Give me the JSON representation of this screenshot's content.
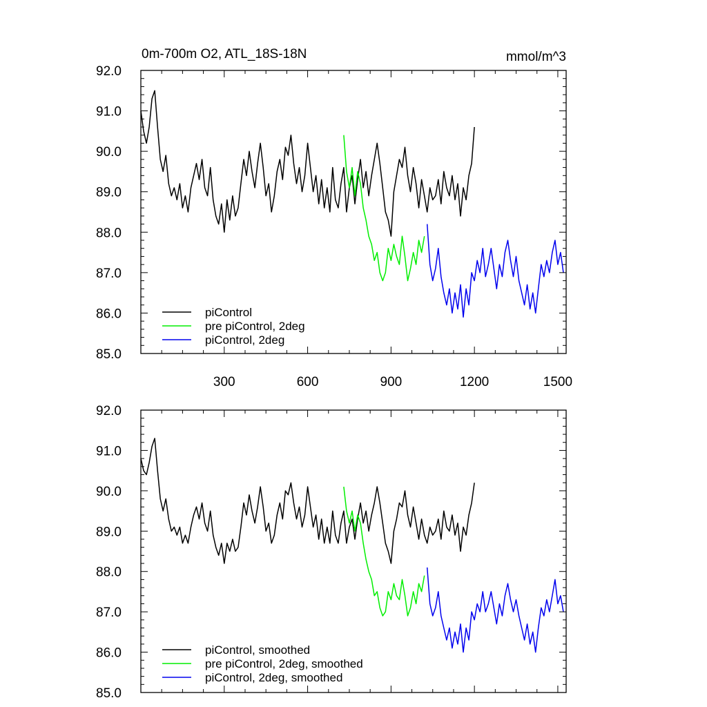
{
  "chart_data": [
    {
      "type": "line",
      "title": "0m-700m O2, ATL_18S-18N",
      "units_label": "mmol/m^3",
      "xlim": [
        0,
        1530
      ],
      "ylim": [
        85.0,
        92.0
      ],
      "x_ticks": [
        300,
        600,
        900,
        1200,
        1500
      ],
      "x_tick_labels": [
        "300",
        "600",
        "900",
        "1200",
        "1500"
      ],
      "y_ticks": [
        85,
        86,
        87,
        88,
        89,
        90,
        91,
        92
      ],
      "y_tick_labels": [
        "85.0",
        "86.0",
        "87.0",
        "88.0",
        "89.0",
        "90.0",
        "91.0",
        "92.0"
      ],
      "legend": [
        "piControl",
        "pre piControl, 2deg",
        "piControl, 2deg"
      ],
      "series": [
        {
          "name": "piControl",
          "color": "#000000",
          "x": [
            0,
            10,
            20,
            30,
            40,
            50,
            60,
            70,
            80,
            90,
            100,
            110,
            120,
            130,
            140,
            150,
            160,
            170,
            180,
            190,
            200,
            210,
            220,
            230,
            240,
            250,
            260,
            270,
            280,
            290,
            300,
            310,
            320,
            330,
            340,
            350,
            360,
            370,
            380,
            390,
            400,
            410,
            420,
            430,
            440,
            450,
            460,
            470,
            480,
            490,
            500,
            510,
            520,
            530,
            540,
            550,
            560,
            570,
            580,
            590,
            600,
            610,
            620,
            630,
            640,
            650,
            660,
            670,
            680,
            690,
            700,
            710,
            720,
            730,
            740,
            750,
            760,
            770,
            780,
            790,
            800,
            810,
            820,
            830,
            840,
            850,
            860,
            870,
            880,
            890,
            900,
            910,
            920,
            930,
            940,
            950,
            960,
            970,
            980,
            990,
            1000,
            1010,
            1020,
            1030,
            1040,
            1050,
            1060,
            1070,
            1080,
            1090,
            1100,
            1110,
            1120,
            1130,
            1140,
            1150,
            1160,
            1170,
            1180,
            1190,
            1200
          ],
          "values": [
            91.0,
            90.5,
            90.2,
            90.6,
            91.3,
            91.5,
            90.6,
            89.8,
            89.5,
            89.9,
            89.2,
            88.9,
            89.1,
            88.8,
            89.2,
            88.6,
            88.9,
            88.5,
            89.1,
            89.4,
            89.7,
            89.3,
            89.8,
            89.1,
            88.9,
            89.6,
            88.8,
            88.4,
            88.2,
            88.7,
            88.0,
            88.8,
            88.3,
            88.9,
            88.4,
            88.6,
            89.2,
            89.8,
            89.4,
            90.0,
            89.5,
            89.1,
            89.7,
            90.2,
            89.6,
            88.9,
            89.2,
            88.5,
            88.9,
            89.5,
            89.8,
            89.3,
            90.1,
            89.9,
            90.4,
            89.7,
            89.2,
            89.6,
            89.0,
            89.4,
            90.2,
            89.6,
            89.0,
            89.4,
            88.7,
            89.3,
            88.6,
            89.1,
            88.5,
            89.6,
            88.8,
            88.6,
            89.2,
            89.6,
            88.5,
            89.1,
            89.4,
            88.7,
            89.3,
            89.8,
            89.1,
            89.5,
            88.9,
            89.4,
            89.8,
            90.2,
            89.7,
            89.1,
            88.5,
            88.3,
            87.9,
            89.0,
            89.4,
            89.8,
            89.6,
            90.1,
            89.4,
            89.0,
            89.6,
            89.2,
            88.6,
            89.3,
            88.9,
            88.5,
            89.1,
            88.8,
            88.9,
            89.3,
            88.7,
            89.5,
            89.1,
            88.9,
            89.4,
            88.8,
            89.2,
            88.4,
            89.1,
            88.8,
            89.4,
            89.7,
            90.6
          ]
        },
        {
          "name": "pre piControl, 2deg",
          "color": "#00ee00",
          "x": [
            730,
            740,
            750,
            760,
            770,
            780,
            790,
            800,
            810,
            820,
            830,
            840,
            850,
            860,
            870,
            880,
            890,
            900,
            910,
            920,
            930,
            940,
            950,
            960,
            970,
            980,
            990,
            1000,
            1010,
            1020
          ],
          "values": [
            90.4,
            89.5,
            89.1,
            89.6,
            88.9,
            89.5,
            89.2,
            88.6,
            88.3,
            87.9,
            87.7,
            87.3,
            87.5,
            87.0,
            86.8,
            87.0,
            87.6,
            87.3,
            87.7,
            87.4,
            87.2,
            87.9,
            87.4,
            86.8,
            87.1,
            87.5,
            87.2,
            87.8,
            87.5,
            87.9
          ]
        },
        {
          "name": "piControl, 2deg",
          "color": "#0000ee",
          "x": [
            1030,
            1040,
            1050,
            1060,
            1070,
            1080,
            1090,
            1100,
            1110,
            1120,
            1130,
            1140,
            1150,
            1160,
            1170,
            1180,
            1190,
            1200,
            1210,
            1220,
            1230,
            1240,
            1250,
            1260,
            1270,
            1280,
            1290,
            1300,
            1310,
            1320,
            1330,
            1340,
            1350,
            1360,
            1370,
            1380,
            1390,
            1400,
            1410,
            1420,
            1430,
            1440,
            1450,
            1460,
            1470,
            1480,
            1490,
            1500,
            1510,
            1520
          ],
          "values": [
            88.2,
            87.2,
            86.8,
            87.1,
            87.6,
            86.9,
            86.5,
            86.2,
            86.6,
            86.0,
            86.5,
            86.1,
            86.7,
            85.9,
            86.6,
            86.2,
            87.0,
            86.8,
            87.3,
            87.0,
            87.6,
            86.9,
            87.2,
            87.6,
            87.1,
            86.6,
            87.2,
            86.9,
            87.5,
            87.8,
            87.3,
            86.9,
            87.4,
            86.8,
            86.5,
            86.2,
            86.7,
            86.1,
            86.5,
            86.0,
            86.6,
            87.2,
            86.9,
            87.3,
            87.0,
            87.5,
            87.8,
            87.2,
            87.5,
            87.0
          ]
        }
      ]
    },
    {
      "type": "line",
      "xlim": [
        0,
        1530
      ],
      "ylim": [
        85.0,
        92.0
      ],
      "x_ticks": [
        300,
        600,
        900,
        1200,
        1500
      ],
      "y_ticks": [
        85,
        86,
        87,
        88,
        89,
        90,
        91,
        92
      ],
      "y_tick_labels": [
        "85.0",
        "86.0",
        "87.0",
        "88.0",
        "89.0",
        "90.0",
        "91.0",
        "92.0"
      ],
      "legend": [
        "piControl, smoothed",
        "pre piControl, 2deg, smoothed",
        "piControl, 2deg, smoothed"
      ],
      "series": [
        {
          "name": "piControl, smoothed",
          "color": "#000000",
          "x": [
            0,
            10,
            20,
            30,
            40,
            50,
            60,
            70,
            80,
            90,
            100,
            110,
            120,
            130,
            140,
            150,
            160,
            170,
            180,
            190,
            200,
            210,
            220,
            230,
            240,
            250,
            260,
            270,
            280,
            290,
            300,
            310,
            320,
            330,
            340,
            350,
            360,
            370,
            380,
            390,
            400,
            410,
            420,
            430,
            440,
            450,
            460,
            470,
            480,
            490,
            500,
            510,
            520,
            530,
            540,
            550,
            560,
            570,
            580,
            590,
            600,
            610,
            620,
            630,
            640,
            650,
            660,
            670,
            680,
            690,
            700,
            710,
            720,
            730,
            740,
            750,
            760,
            770,
            780,
            790,
            800,
            810,
            820,
            830,
            840,
            850,
            860,
            870,
            880,
            890,
            900,
            910,
            920,
            930,
            940,
            950,
            960,
            970,
            980,
            990,
            1000,
            1010,
            1020,
            1030,
            1040,
            1050,
            1060,
            1070,
            1080,
            1090,
            1100,
            1110,
            1120,
            1130,
            1140,
            1150,
            1160,
            1170,
            1180,
            1190,
            1200
          ],
          "values": [
            90.8,
            90.5,
            90.4,
            90.7,
            91.1,
            91.3,
            90.5,
            89.8,
            89.5,
            89.8,
            89.3,
            89.0,
            89.1,
            88.9,
            89.1,
            88.7,
            88.9,
            88.7,
            89.1,
            89.4,
            89.6,
            89.3,
            89.7,
            89.2,
            89.0,
            89.5,
            88.9,
            88.6,
            88.4,
            88.7,
            88.2,
            88.7,
            88.5,
            88.8,
            88.5,
            88.6,
            89.1,
            89.7,
            89.4,
            89.9,
            89.5,
            89.2,
            89.6,
            90.1,
            89.6,
            89.0,
            89.2,
            88.7,
            88.9,
            89.4,
            89.7,
            89.3,
            90.0,
            89.9,
            90.2,
            89.7,
            89.3,
            89.6,
            89.1,
            89.4,
            90.1,
            89.6,
            89.1,
            89.4,
            88.8,
            89.3,
            88.7,
            89.1,
            88.7,
            89.5,
            88.9,
            88.7,
            89.2,
            89.5,
            88.7,
            89.1,
            89.3,
            88.8,
            89.3,
            89.7,
            89.2,
            89.5,
            89.0,
            89.4,
            89.7,
            90.1,
            89.7,
            89.2,
            88.7,
            88.5,
            88.2,
            89.0,
            89.3,
            89.7,
            89.6,
            90.0,
            89.4,
            89.1,
            89.6,
            89.2,
            88.8,
            89.3,
            88.9,
            88.7,
            89.1,
            88.9,
            89.0,
            89.3,
            88.8,
            89.5,
            89.1,
            89.0,
            89.4,
            88.9,
            89.2,
            88.5,
            89.1,
            88.9,
            89.4,
            89.7,
            90.2
          ]
        },
        {
          "name": "pre piControl, 2deg, smoothed",
          "color": "#00ee00",
          "x": [
            730,
            740,
            750,
            760,
            770,
            780,
            790,
            800,
            810,
            820,
            830,
            840,
            850,
            860,
            870,
            880,
            890,
            900,
            910,
            920,
            930,
            940,
            950,
            960,
            970,
            980,
            990,
            1000,
            1010,
            1020
          ],
          "values": [
            90.1,
            89.5,
            89.2,
            89.5,
            89.0,
            89.4,
            89.2,
            88.7,
            88.3,
            88.0,
            87.8,
            87.4,
            87.5,
            87.1,
            86.9,
            87.0,
            87.5,
            87.3,
            87.7,
            87.4,
            87.3,
            87.8,
            87.4,
            86.9,
            87.1,
            87.5,
            87.2,
            87.7,
            87.5,
            87.9
          ]
        },
        {
          "name": "piControl, 2deg, smoothed",
          "color": "#0000ee",
          "x": [
            1030,
            1040,
            1050,
            1060,
            1070,
            1080,
            1090,
            1100,
            1110,
            1120,
            1130,
            1140,
            1150,
            1160,
            1170,
            1180,
            1190,
            1200,
            1210,
            1220,
            1230,
            1240,
            1250,
            1260,
            1270,
            1280,
            1290,
            1300,
            1310,
            1320,
            1330,
            1340,
            1350,
            1360,
            1370,
            1380,
            1390,
            1400,
            1410,
            1420,
            1430,
            1440,
            1450,
            1460,
            1470,
            1480,
            1490,
            1500,
            1510,
            1520
          ],
          "values": [
            88.1,
            87.2,
            86.9,
            87.1,
            87.5,
            86.9,
            86.6,
            86.3,
            86.6,
            86.1,
            86.5,
            86.2,
            86.7,
            86.0,
            86.6,
            86.3,
            87.0,
            86.8,
            87.2,
            87.0,
            87.5,
            87.0,
            87.2,
            87.5,
            87.1,
            86.7,
            87.2,
            86.9,
            87.4,
            87.7,
            87.3,
            87.0,
            87.3,
            86.9,
            86.6,
            86.3,
            86.7,
            86.2,
            86.5,
            86.0,
            86.6,
            87.1,
            86.9,
            87.3,
            87.0,
            87.4,
            87.8,
            87.2,
            87.4,
            87.0
          ]
        }
      ]
    }
  ]
}
